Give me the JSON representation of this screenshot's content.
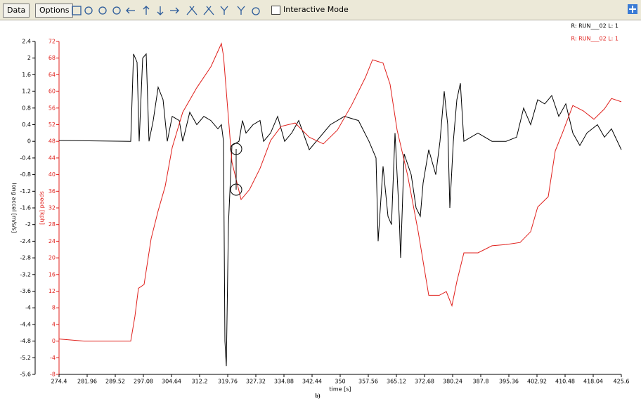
{
  "toolbar": {
    "buttons": [
      "Data",
      "Options"
    ],
    "checkbox_label": "Interactive Mode"
  },
  "chart_data": {
    "type": "line",
    "xlabel": "time [s]",
    "ylabel": "long accel [m/s/s]",
    "y2label": "speed [kph]",
    "caption": "b)",
    "xlim": [
      274.4,
      425.6
    ],
    "xticks": [
      274.4,
      281.96,
      289.52,
      297.08,
      304.64,
      312.2,
      319.76,
      327.32,
      334.88,
      342.44,
      350,
      357.56,
      365.12,
      372.68,
      380.24,
      387.8,
      395.36,
      402.92,
      410.48,
      418.04,
      425.6
    ],
    "ylim": [
      -5.6,
      2.4
    ],
    "yticks": [
      2.4,
      2,
      1.6,
      1.2,
      0.8,
      0.4,
      0,
      -0.4,
      -0.8,
      -1.2,
      -1.6,
      -2,
      -2.4,
      -2.8,
      -3.2,
      -3.6,
      -4,
      -4.4,
      -4.8,
      -5.2,
      -5.6
    ],
    "y2lim": [
      -8,
      72
    ],
    "y2ticks": [
      72,
      68,
      64,
      60,
      56,
      52,
      48,
      44,
      40,
      36,
      32,
      28,
      24,
      20,
      16,
      12,
      8,
      4,
      0,
      -4,
      -8
    ],
    "series": [
      {
        "name": "R: RUN___02  L: 1",
        "color": "#000000",
        "x": [
          274.4,
          293.68,
          294.43,
          295.38,
          295.95,
          296.89,
          297.84,
          298.59,
          299.73,
          301.05,
          302.37,
          303.51,
          304.83,
          306.72,
          307.66,
          309.55,
          311.44,
          313.33,
          315.22,
          317.11,
          318.06,
          318.63,
          319.0,
          319.38,
          319.95,
          320.89,
          322.78,
          323.73,
          324.67,
          326.56,
          328.45,
          329.4,
          331.29,
          333.18,
          335.07,
          336.96,
          338.85,
          341.68,
          344.52,
          347.35,
          351.13,
          354.91,
          357.75,
          359.64,
          360.21,
          361.53,
          362.85,
          363.8,
          364.74,
          365.88,
          366.25,
          367.2,
          369.09,
          370.41,
          371.55,
          372.3,
          373.81,
          375.7,
          376.84,
          377.97,
          378.92,
          379.48,
          380.43,
          381.37,
          382.32,
          383.26,
          387.04,
          390.82,
          394.6,
          397.44,
          399.33,
          401.22,
          403.11,
          405.0,
          406.89,
          408.78,
          410.67,
          412.56,
          414.45,
          416.34,
          419.17,
          421.06,
          422.95,
          425.6
        ],
        "values": [
          0.02,
          0,
          2.1,
          1.9,
          0,
          2.0,
          2.1,
          0,
          0.5,
          1.3,
          1.0,
          0,
          0.6,
          0.5,
          0,
          0.7,
          0.4,
          0.6,
          0.5,
          0.3,
          0.4,
          0,
          -4.8,
          -5.4,
          -2,
          -0.1,
          0,
          0.5,
          0.2,
          0.4,
          0.5,
          0,
          0.2,
          0.6,
          0,
          0.2,
          0.5,
          -0.2,
          0.1,
          0.4,
          0.6,
          0.5,
          0,
          -0.4,
          -2.4,
          -0.6,
          -1.8,
          -2.0,
          0.2,
          -1.8,
          -2.8,
          -0.3,
          -0.8,
          -1.6,
          -1.8,
          -1.0,
          -0.2,
          -0.8,
          0,
          1.2,
          0.4,
          -1.6,
          0,
          1.0,
          1.4,
          0,
          0.2,
          0,
          0,
          0.1,
          0.8,
          0.4,
          1.0,
          0.9,
          1.1,
          0.6,
          0.9,
          0.2,
          -0.1,
          0.2,
          0.4,
          0.1,
          0.3,
          -0.2
        ]
      },
      {
        "name": "R: RUN___02  L: 1",
        "color": "#e0201c",
        "axis": "y2",
        "x": [
          274.4,
          281.2,
          288.76,
          293.68,
          294.81,
          295.76,
          297.27,
          299.16,
          301.05,
          302.94,
          304.83,
          307.66,
          311.44,
          315.22,
          318.06,
          318.63,
          320.89,
          323.35,
          325.62,
          328.45,
          331.29,
          334.12,
          337.9,
          341.68,
          345.46,
          349.24,
          353.02,
          356.8,
          358.69,
          361.53,
          363.42,
          365.31,
          368.14,
          370.98,
          373.81,
          376.65,
          378.54,
          380.05,
          381.37,
          383.26,
          387.04,
          390.82,
          394.6,
          398.38,
          401.22,
          403.11,
          405.94,
          407.83,
          409.72,
          412.56,
          415.39,
          418.23,
          421.06,
          422.95,
          425.6
        ],
        "values": [
          0.5,
          0,
          0,
          0,
          6,
          12.7,
          13.6,
          24.6,
          31.3,
          37.2,
          46.5,
          55,
          60.9,
          65.9,
          71.5,
          68.5,
          43,
          34,
          36.4,
          41.5,
          48.2,
          51.6,
          52.4,
          49,
          47.4,
          50.7,
          56.6,
          63.4,
          67.6,
          66.8,
          61.7,
          50.7,
          39.8,
          26.3,
          11,
          11,
          11.9,
          8.5,
          14.3,
          21.2,
          21.2,
          22.9,
          23.2,
          23.7,
          26.3,
          32.2,
          34.7,
          45.7,
          49.9,
          56.6,
          55.3,
          53.3,
          55.8,
          58.3,
          57.5
        ]
      }
    ]
  }
}
